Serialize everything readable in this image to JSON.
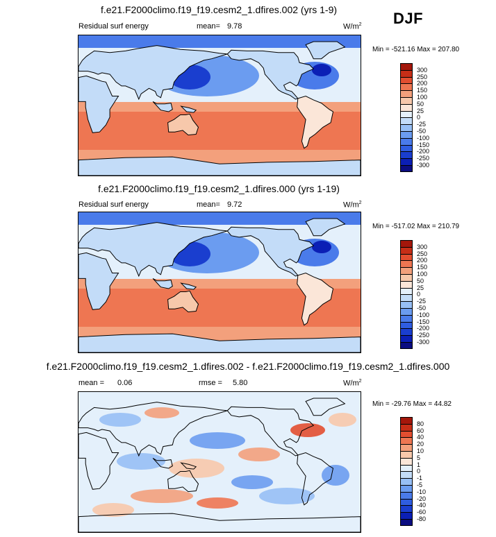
{
  "season": "DJF",
  "palette_abs": [
    "#0b0d80",
    "#0b1fb5",
    "#1a3ecf",
    "#2f5de0",
    "#4a7bea",
    "#6b9cf0",
    "#97bff5",
    "#c3dcf8",
    "#e4f0fb",
    "#fbe6d8",
    "#f7c8ab",
    "#f3a07c",
    "#ee7652",
    "#e24e30",
    "#c62e17",
    "#a4170b",
    "#7e0b06"
  ],
  "palette_diff": [
    "#0b0d80",
    "#0b1fb5",
    "#1a3ecf",
    "#2f5de0",
    "#4a7bea",
    "#6b9cf0",
    "#97bff5",
    "#c3dcf8",
    "#e4f0fb",
    "#fbe6d8",
    "#f7c8ab",
    "#f3a07c",
    "#ee7652",
    "#e24e30",
    "#c62e17",
    "#a4170b",
    "#7e0b06"
  ],
  "panels": [
    {
      "title": "f.e21.F2000climo.f19_f19.cesm2_1.dfires.002 (yrs 1-9)",
      "variable": "Residual surf energy",
      "mean_label": "mean=",
      "mean_value": "9.78",
      "units": "W/m",
      "units_exp": "2",
      "minmax": "Min = -521.16 Max = 207.80",
      "levels": [
        "300",
        "250",
        "200",
        "150",
        "100",
        "50",
        "25",
        "0",
        "-25",
        "-50",
        "-100",
        "-150",
        "-200",
        "-250",
        "-300"
      ],
      "kind": "abs"
    },
    {
      "title": "f.e21.F2000climo.f19_f19.cesm2_1.dfires.000 (yrs 1-19)",
      "variable": "Residual surf energy",
      "mean_label": "mean=",
      "mean_value": "9.72",
      "units": "W/m",
      "units_exp": "2",
      "minmax": "Min = -517.02 Max = 210.79",
      "levels": [
        "300",
        "250",
        "200",
        "150",
        "100",
        "50",
        "25",
        "0",
        "-25",
        "-50",
        "-100",
        "-150",
        "-200",
        "-250",
        "-300"
      ],
      "kind": "abs"
    },
    {
      "title": "f.e21.F2000climo.f19_f19.cesm2_1.dfires.002 - f.e21.F2000climo.f19_f19.cesm2_1.dfires.000",
      "variable": "mean =",
      "mean_label": "",
      "mean_value": "0.06",
      "rmse_label": "rmse =",
      "rmse_value": "5.80",
      "units": "W/m",
      "units_exp": "2",
      "minmax": "Min = -29.76 Max = 44.82",
      "levels": [
        "80",
        "60",
        "40",
        "20",
        "10",
        "5",
        "1",
        "0",
        "-1",
        "-5",
        "-10",
        "-20",
        "-40",
        "-60",
        "-80"
      ],
      "kind": "diff"
    }
  ]
}
